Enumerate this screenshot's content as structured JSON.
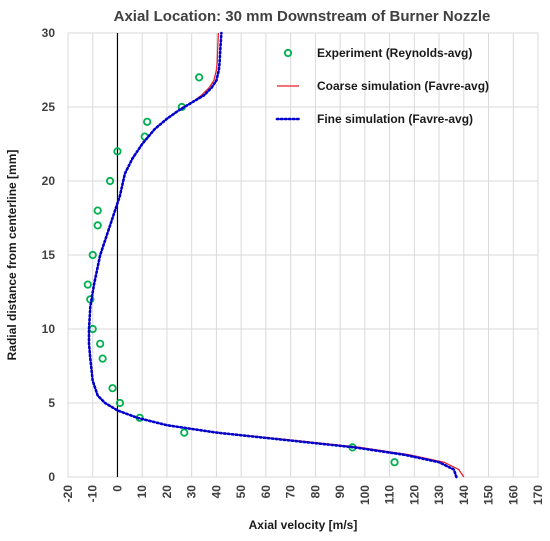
{
  "chart_data": {
    "type": "scatter",
    "title": "Axial Location: 30 mm Downstream of Burner Nozzle",
    "xlabel": "Axial velocity [m/s]",
    "ylabel": "Radial distance from centerline [mm]",
    "xlim": [
      -20,
      170
    ],
    "ylim": [
      0,
      30
    ],
    "xticks": [
      -20,
      -10,
      0,
      10,
      20,
      30,
      40,
      50,
      60,
      70,
      80,
      90,
      100,
      110,
      120,
      130,
      140,
      150,
      160,
      170
    ],
    "yticks": [
      0,
      5,
      10,
      15,
      20,
      25,
      30
    ],
    "grid": true,
    "legend_position": "top-right",
    "series": [
      {
        "name": "Experiment (Reynolds-avg)",
        "style": "markers",
        "color": "#00b050",
        "x": [
          112,
          95,
          27,
          9,
          1,
          -2,
          -6,
          -7,
          -10,
          -11,
          -12,
          -10,
          -8,
          -8,
          -3,
          0,
          11,
          12,
          26,
          33
        ],
        "y": [
          1,
          2,
          3,
          4,
          5,
          6,
          8,
          9,
          10,
          12,
          13,
          15,
          17,
          18,
          20,
          22,
          23,
          24,
          25,
          27
        ]
      },
      {
        "name": "Coarse simulation (Favre-avg)",
        "style": "solid",
        "color": "#e8212b",
        "x": [
          140,
          138,
          132,
          118,
          98,
          70,
          40,
          20,
          8,
          0,
          -5,
          -8,
          -10,
          -11,
          -11.5,
          -11.5,
          -11,
          -9.5,
          -7,
          -4,
          -1,
          1,
          3,
          6,
          10,
          15,
          20,
          25,
          30,
          34,
          37,
          39,
          40,
          40.3,
          40.5,
          40.8
        ],
        "y": [
          0,
          0.5,
          1,
          1.5,
          2,
          2.5,
          3,
          3.5,
          4,
          4.5,
          5,
          5.5,
          6.5,
          8,
          9,
          10,
          11.5,
          13,
          15,
          16.5,
          18,
          19,
          20.5,
          21.5,
          22.5,
          23.5,
          24.2,
          24.8,
          25.3,
          25.8,
          26.3,
          26.8,
          27.5,
          28,
          29,
          30
        ]
      },
      {
        "name": "Fine simulation (Favre-avg)",
        "style": "dotted",
        "color": "#0000cc",
        "x": [
          137,
          136,
          130,
          116,
          96,
          68,
          40,
          20,
          8,
          0,
          -5,
          -8,
          -10,
          -11,
          -11.5,
          -11.5,
          -11,
          -9.5,
          -7,
          -4,
          -1,
          1,
          3,
          6,
          10,
          15,
          20,
          25,
          30,
          35,
          38,
          40,
          41,
          41.3,
          41.6,
          42
        ],
        "y": [
          0,
          0.5,
          1,
          1.5,
          2,
          2.5,
          3,
          3.5,
          4,
          4.5,
          5,
          5.5,
          6.5,
          8,
          9,
          10,
          11.5,
          13,
          15,
          16.5,
          18,
          19,
          20.5,
          21.5,
          22.5,
          23.5,
          24.2,
          24.8,
          25.3,
          25.8,
          26.3,
          26.8,
          27.5,
          28,
          29,
          30
        ]
      }
    ]
  }
}
